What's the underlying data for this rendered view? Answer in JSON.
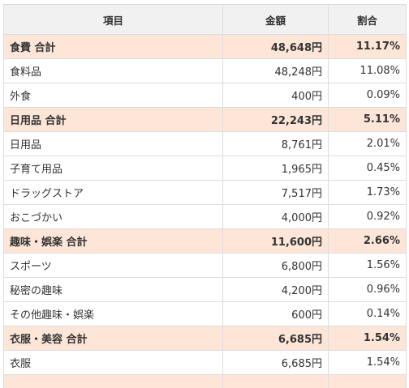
{
  "table": {
    "headers": {
      "item": "項目",
      "amount": "金額",
      "ratio": "割合"
    },
    "rows": [
      {
        "kind": "total",
        "item": "食費 合計",
        "amount": "48,648円",
        "ratio": "11.17%"
      },
      {
        "kind": "detail",
        "item": "食料品",
        "amount": "48,248円",
        "ratio": "11.08%"
      },
      {
        "kind": "detail",
        "item": "外食",
        "amount": "400円",
        "ratio": "0.09%"
      },
      {
        "kind": "total",
        "item": "日用品 合計",
        "amount": "22,243円",
        "ratio": "5.11%"
      },
      {
        "kind": "detail",
        "item": "日用品",
        "amount": "8,761円",
        "ratio": "2.01%"
      },
      {
        "kind": "detail",
        "item": "子育て用品",
        "amount": "1,965円",
        "ratio": "0.45%"
      },
      {
        "kind": "detail",
        "item": "ドラッグストア",
        "amount": "7,517円",
        "ratio": "1.73%"
      },
      {
        "kind": "detail",
        "item": "おこづかい",
        "amount": "4,000円",
        "ratio": "0.92%"
      },
      {
        "kind": "total",
        "item": "趣味・娯楽 合計",
        "amount": "11,600円",
        "ratio": "2.66%"
      },
      {
        "kind": "detail",
        "item": "スポーツ",
        "amount": "6,800円",
        "ratio": "1.56%"
      },
      {
        "kind": "detail",
        "item": "秘密の趣味",
        "amount": "4,200円",
        "ratio": "0.96%"
      },
      {
        "kind": "detail",
        "item": "その他趣味・娯楽",
        "amount": "600円",
        "ratio": "0.14%"
      },
      {
        "kind": "total",
        "item": "衣服・美容 合計",
        "amount": "6,685円",
        "ratio": "1.54%"
      },
      {
        "kind": "detail",
        "item": "衣服",
        "amount": "6,685円",
        "ratio": "1.54%"
      },
      {
        "kind": "total",
        "item": "",
        "amount": "",
        "ratio": ""
      }
    ]
  },
  "colors": {
    "header_bg": "#f1f1f1",
    "total_row_bg": "#fde6d8",
    "detail_row_bg": "#ffffff",
    "border": "#dcdcdc",
    "text": "#333333"
  }
}
